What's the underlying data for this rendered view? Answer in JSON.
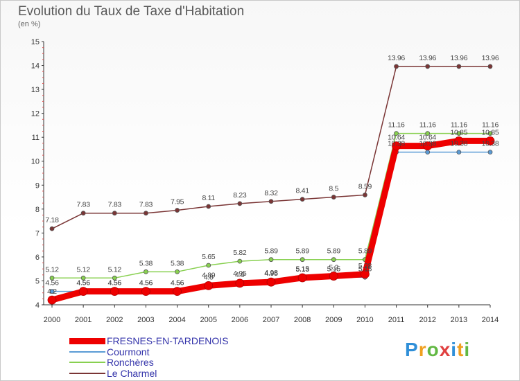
{
  "header": {
    "title": "Evolution du Taux de Taxe d'Habitation",
    "unit": "(en %)"
  },
  "brand": {
    "name": "Proxiti"
  },
  "chart_data": {
    "type": "line",
    "title": "Evolution du Taux de Taxe d'Habitation",
    "ylabel": "(en %)",
    "xlabel": "",
    "ylim": [
      4,
      15
    ],
    "yticks": [
      "4",
      "5",
      "6",
      "7",
      "8",
      "9",
      "10",
      "11",
      "12",
      "13",
      "14",
      "15"
    ],
    "categories": [
      "2000",
      "2001",
      "2002",
      "2003",
      "2004",
      "2005",
      "2006",
      "2007",
      "2008",
      "2009",
      "2010",
      "2011",
      "2012",
      "2013",
      "2014"
    ],
    "grid": false,
    "legend_position": "bottom-left",
    "series": [
      {
        "name": "FRESNES-EN-TARDENOIS",
        "color": "#ee0000",
        "values": [
          4.2,
          4.56,
          4.56,
          4.56,
          4.56,
          4.8,
          4.9,
          4.95,
          5.13,
          5.2,
          5.28,
          10.64,
          10.64,
          10.85,
          10.85
        ],
        "labels": [
          "4.2",
          "4.56",
          "4.56",
          "4.56",
          "4.56",
          "4.8",
          "4.9",
          "4.95",
          "5.13",
          "5.2",
          "5.28",
          "10.64",
          "10.64",
          "10.85",
          "10.85"
        ]
      },
      {
        "name": "Courmont",
        "color": "#5a9bd5",
        "values": [
          4.56,
          4.56,
          4.56,
          4.56,
          4.56,
          4.89,
          4.95,
          4.98,
          5.15,
          5.15,
          5.15,
          10.38,
          10.38,
          10.38,
          10.38
        ],
        "labels": [
          "4.56",
          "4.56",
          "4.56",
          "4.56",
          "4.56",
          "4.89",
          "4.95",
          "4.98",
          "5.15",
          "5.15",
          "5.15",
          "10.38",
          "10.38",
          "10.38",
          "10.38"
        ]
      },
      {
        "name": "Ronchères",
        "color": "#88d050",
        "values": [
          5.12,
          5.12,
          5.12,
          5.38,
          5.38,
          5.65,
          5.82,
          5.89,
          5.89,
          5.89,
          5.89,
          11.16,
          11.16,
          11.16,
          11.16
        ],
        "labels": [
          "5.12",
          "5.12",
          "5.12",
          "5.38",
          "5.38",
          "5.65",
          "5.82",
          "5.89",
          "5.89",
          "5.89",
          "5.89",
          "11.16",
          "11.16",
          "11.16",
          "11.16"
        ]
      },
      {
        "name": "Le Charmel",
        "color": "#7a3535",
        "values": [
          7.18,
          7.83,
          7.83,
          7.83,
          7.95,
          8.11,
          8.23,
          8.32,
          8.41,
          8.5,
          8.59,
          13.96,
          13.96,
          13.96,
          13.96
        ],
        "labels": [
          "7.18",
          "7.83",
          "7.83",
          "7.83",
          "7.95",
          "8.11",
          "8.23",
          "8.32",
          "8.41",
          "8.5",
          "8.59",
          "13.96",
          "13.96",
          "13.96",
          "13.96"
        ]
      }
    ]
  }
}
